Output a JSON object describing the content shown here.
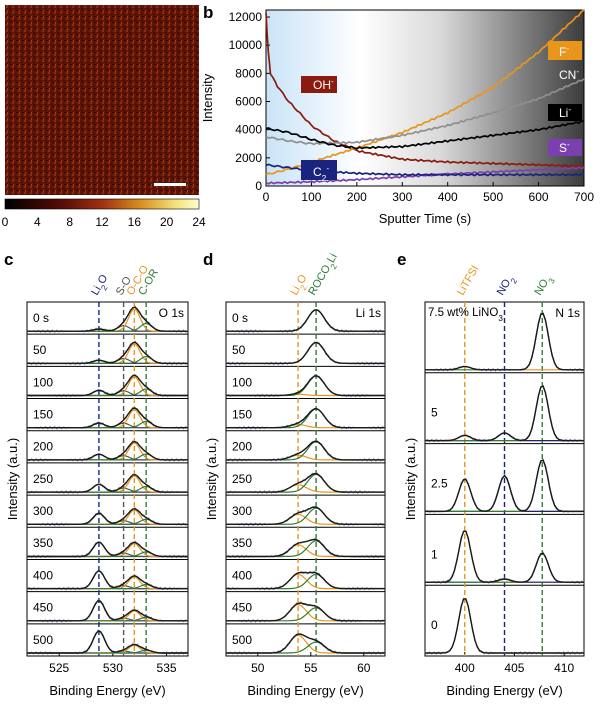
{
  "panel_labels": {
    "b": "b",
    "c": "c",
    "d": "d",
    "e": "e"
  },
  "panel_a": {
    "colorbar_ticks": [
      "0",
      "4",
      "8",
      "12",
      "16",
      "20",
      "24"
    ],
    "colors": {
      "low": "#000000",
      "mid": "#8b1a0f",
      "high": "#ffffcc"
    }
  },
  "chart_data": [
    {
      "id": "b",
      "type": "line",
      "title": "",
      "xlabel": "Sputter Time (s)",
      "ylabel": "Intensity",
      "xlim": [
        0,
        700
      ],
      "ylim": [
        0,
        12500
      ],
      "xticks": [
        "0",
        "100",
        "200",
        "300",
        "400",
        "500",
        "600",
        "700"
      ],
      "yticks": [
        "0",
        "2000",
        "4000",
        "6000",
        "8000",
        "10000",
        "12000"
      ],
      "series": [
        {
          "name": "OH",
          "sup": "-",
          "color": "#8b1a0f",
          "text_color": "#ffffff",
          "x": [
            0,
            5,
            10,
            25,
            50,
            100,
            150,
            200,
            300,
            400,
            500,
            600,
            700
          ],
          "y": [
            12300,
            9500,
            8000,
            7100,
            6000,
            4300,
            3200,
            2500,
            1900,
            1700,
            1600,
            1500,
            1400
          ]
        },
        {
          "name": "F",
          "sup": "-",
          "color": "#e8951c",
          "text_color": "#ffffff",
          "x": [
            0,
            50,
            100,
            200,
            300,
            400,
            500,
            600,
            700
          ],
          "y": [
            800,
            1200,
            1700,
            2700,
            3800,
            5200,
            7000,
            9500,
            12500
          ]
        },
        {
          "name": "CN",
          "sup": "-",
          "color": "#8f8f8f",
          "text_color": "#ffffff",
          "x": [
            0,
            50,
            100,
            200,
            300,
            400,
            500,
            600,
            700
          ],
          "y": [
            3500,
            3200,
            3000,
            3100,
            3600,
            4300,
            5200,
            6200,
            7600
          ]
        },
        {
          "name": "Li",
          "sup": "-",
          "color": "#000000",
          "text_color": "#ffffff",
          "x": [
            0,
            50,
            100,
            150,
            200,
            300,
            400,
            500,
            600,
            700
          ],
          "y": [
            4100,
            3800,
            3300,
            2900,
            2700,
            2800,
            3200,
            3600,
            4000,
            4600
          ]
        },
        {
          "name": "S",
          "sup": "-",
          "color": "#7b3fb0",
          "text_color": "#ffffff",
          "x": [
            0,
            100,
            200,
            300,
            400,
            500,
            600,
            700
          ],
          "y": [
            200,
            300,
            450,
            650,
            850,
            1000,
            1150,
            1300
          ]
        },
        {
          "name": "C",
          "sub": "2",
          "sup": "-",
          "color": "#1a237e",
          "text_color": "#ffffff",
          "x": [
            0,
            50,
            100,
            200,
            300,
            400,
            500,
            600,
            700
          ],
          "y": [
            1500,
            1300,
            1100,
            900,
            800,
            800,
            800,
            800,
            800
          ]
        }
      ]
    },
    {
      "id": "c",
      "type": "line",
      "subtype": "stacked-spectra",
      "xlabel": "Binding Energy (eV)",
      "ylabel": "Intensity (a.u.)",
      "xlim": [
        522,
        537
      ],
      "xticks": [
        "525",
        "530",
        "535"
      ],
      "region_label": "O 1s",
      "rows": [
        "0 s",
        "50",
        "100",
        "150",
        "200",
        "250",
        "300",
        "350",
        "400",
        "450",
        "500"
      ],
      "li2o_amp": [
        0.08,
        0.12,
        0.2,
        0.18,
        0.22,
        0.3,
        0.42,
        0.55,
        0.68,
        0.78,
        0.85
      ],
      "main_amp": [
        0.85,
        0.75,
        0.72,
        0.7,
        0.65,
        0.62,
        0.55,
        0.5,
        0.45,
        0.38,
        0.3
      ],
      "peaks": [
        {
          "label": "Li2O",
          "center": 528.7,
          "color": "#1a237e"
        },
        {
          "label": "S-O",
          "center": 531.0,
          "color": "#555555"
        },
        {
          "label": "O-C-O",
          "center": 532.0,
          "color": "#e8951c"
        },
        {
          "label": "C-OR",
          "center": 533.1,
          "color": "#2e7d32"
        }
      ]
    },
    {
      "id": "d",
      "type": "line",
      "subtype": "stacked-spectra",
      "xlabel": "Binding Energy (eV)",
      "ylabel": "Intensity (a.u.)",
      "xlim": [
        47,
        62
      ],
      "xticks": [
        "50",
        "55",
        "60"
      ],
      "region_label": "Li 1s",
      "rows": [
        "0 s",
        "50",
        "100",
        "150",
        "200",
        "250",
        "300",
        "350",
        "400",
        "450",
        "500"
      ],
      "li2o_amp": [
        0.0,
        0.0,
        0.05,
        0.12,
        0.18,
        0.28,
        0.38,
        0.45,
        0.55,
        0.62,
        0.68
      ],
      "main_amp": [
        0.82,
        0.8,
        0.75,
        0.72,
        0.7,
        0.68,
        0.62,
        0.6,
        0.55,
        0.5,
        0.42
      ],
      "peaks": [
        {
          "label": "Li2O",
          "center": 53.8,
          "color": "#e8951c"
        },
        {
          "label": "ROCO2Li",
          "center": 55.5,
          "color": "#2e7d32"
        }
      ]
    },
    {
      "id": "e",
      "type": "line",
      "subtype": "stacked-spectra",
      "xlabel": "Binding Energy (eV)",
      "ylabel": "Intensity (a.u.)",
      "xlim": [
        396,
        412
      ],
      "xticks": [
        "400",
        "405",
        "410"
      ],
      "region_label": "N 1s",
      "top_label": "7.5 wt% LiNO",
      "top_label_sub": "3",
      "rows": [
        "",
        "5",
        "2.5",
        "1",
        "0"
      ],
      "peaks": [
        {
          "label": "LiTFSI",
          "center": 400.0,
          "color": "#e8951c"
        },
        {
          "label": "NO2",
          "center": 404.0,
          "color": "#1a237e"
        },
        {
          "label": "NO3",
          "center": 407.8,
          "color": "#2e7d32"
        }
      ],
      "amplitudes": [
        [
          0.05,
          0.0,
          0.88
        ],
        [
          0.08,
          0.12,
          0.85
        ],
        [
          0.5,
          0.55,
          0.8
        ],
        [
          0.8,
          0.05,
          0.45
        ],
        [
          0.85,
          0.0,
          0.0
        ]
      ]
    }
  ]
}
